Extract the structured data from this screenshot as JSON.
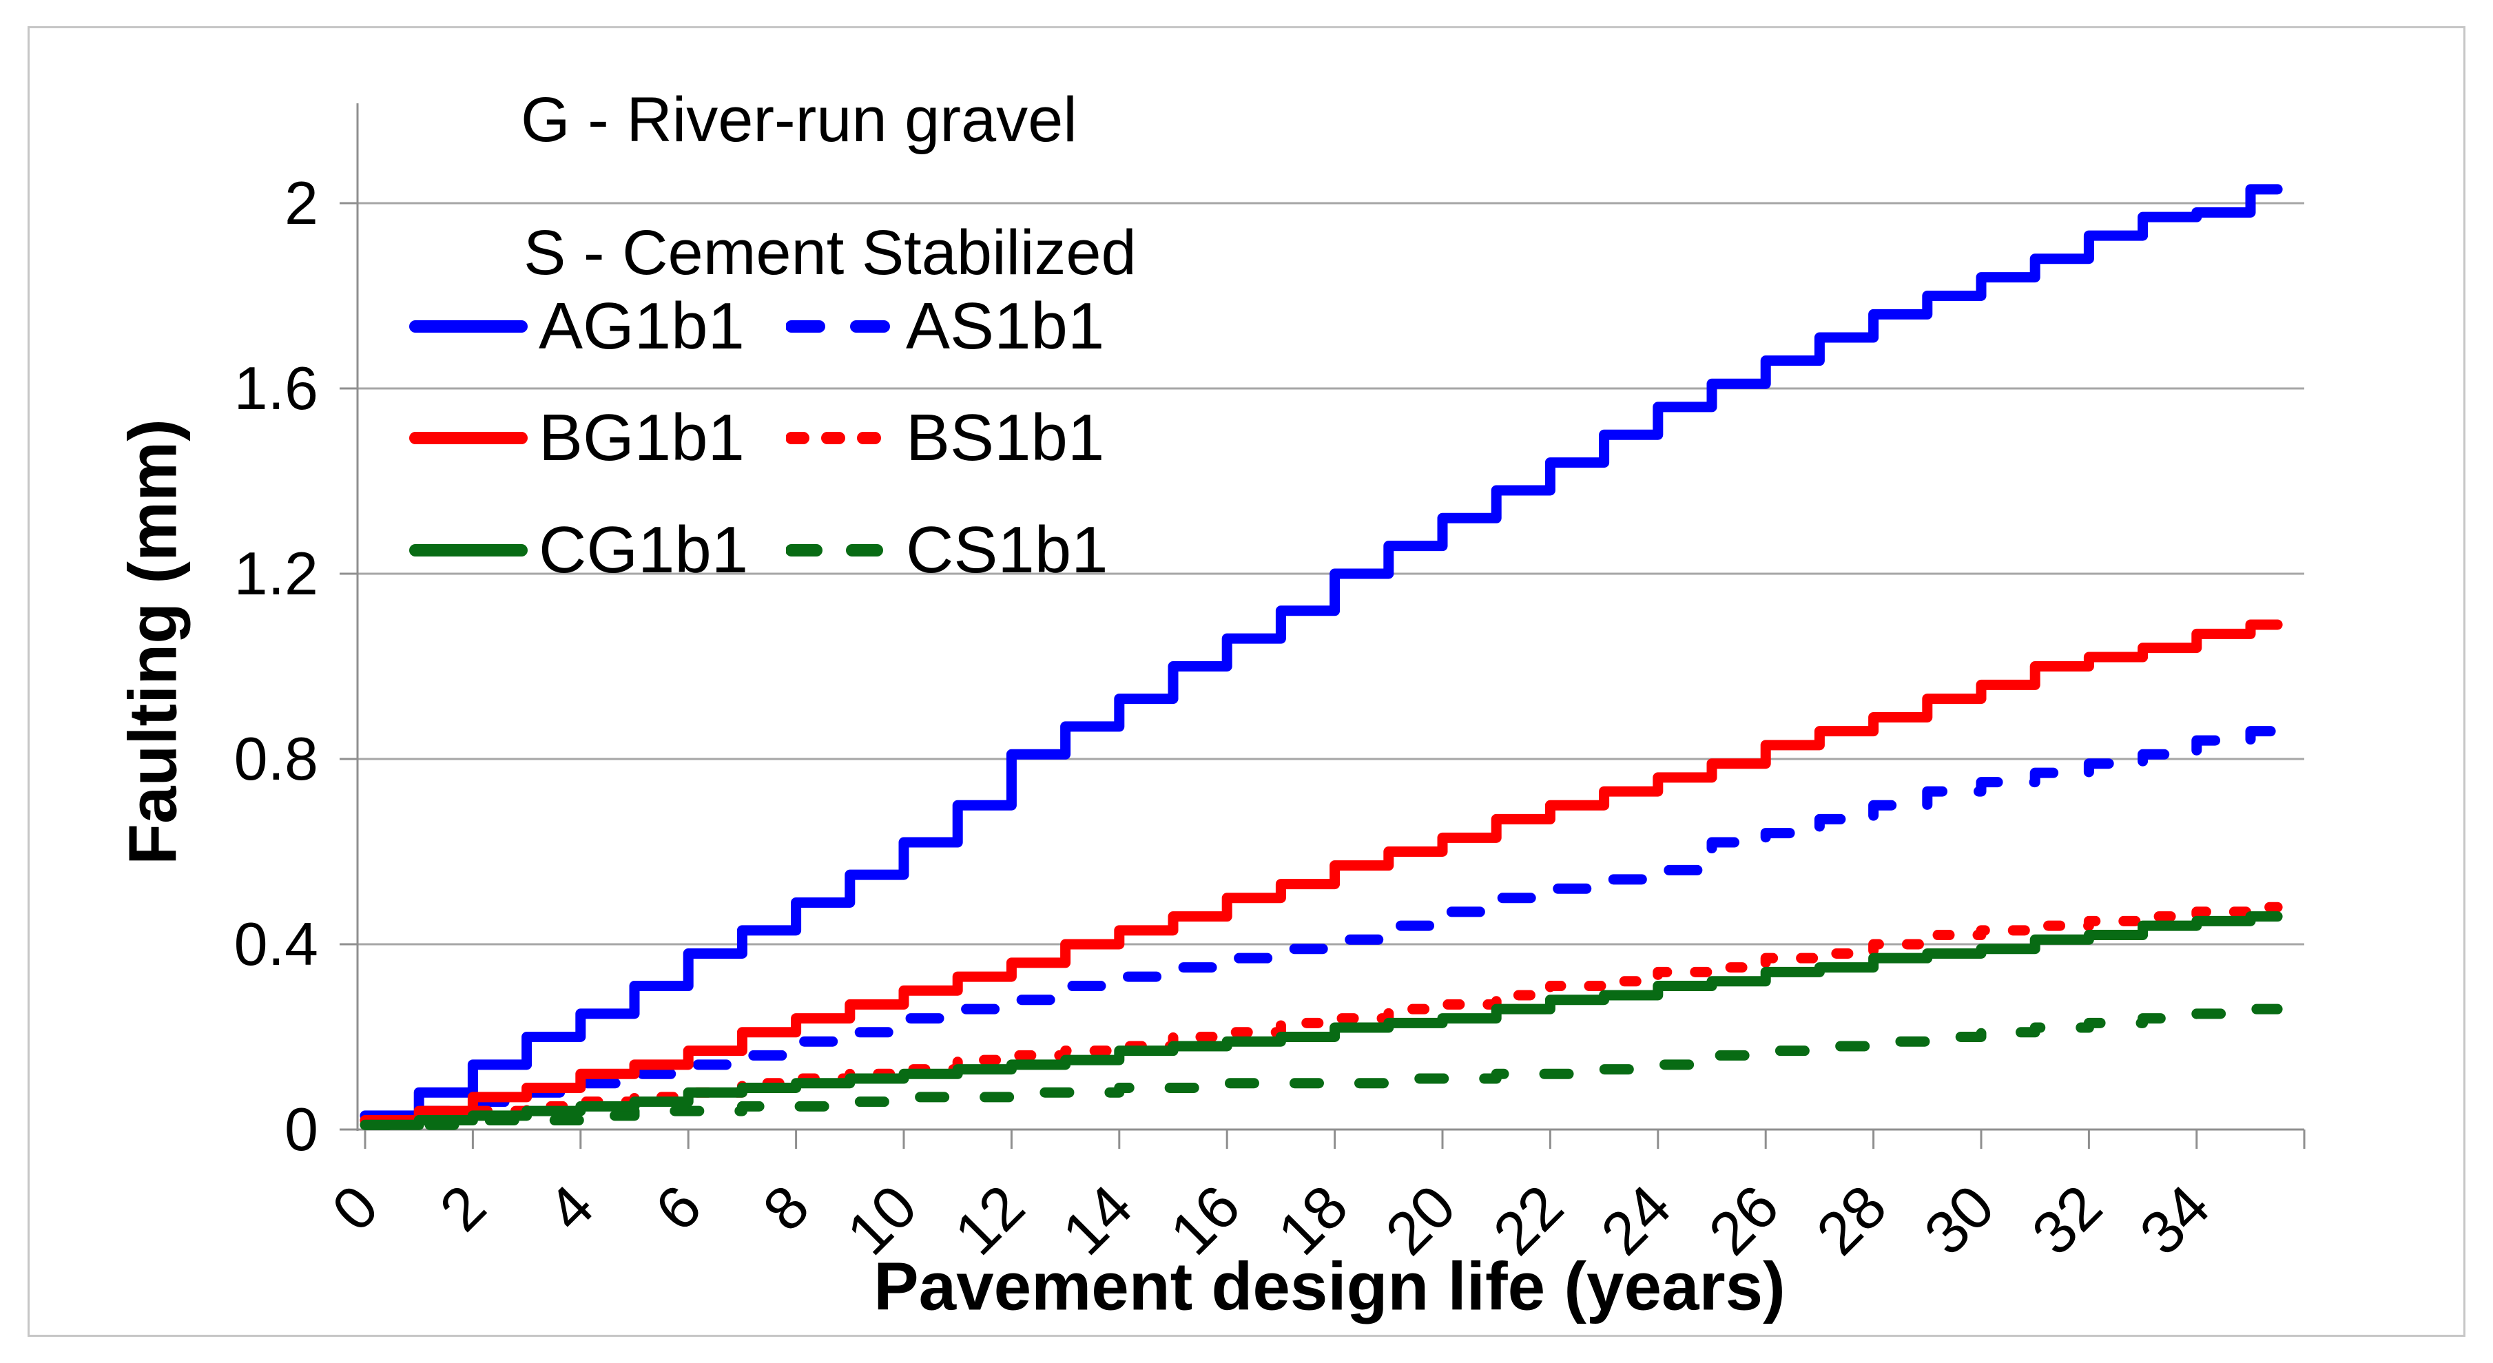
{
  "chart_data": {
    "type": "line",
    "subtype": "step",
    "title": "",
    "xlabel": "Pavement design life (years)",
    "ylabel": "Faulting (mm)",
    "xlim": [
      0,
      36
    ],
    "ylim": [
      0,
      2.2
    ],
    "grid": "horizontal",
    "legend_position": "top-left-inside",
    "legend_notes": [
      "G - River-run gravel",
      "S - Cement Stabilized"
    ],
    "xtick_values": [
      0,
      2,
      4,
      6,
      8,
      10,
      12,
      14,
      16,
      18,
      20,
      22,
      24,
      26,
      28,
      30,
      32,
      34
    ],
    "xtick_labels": [
      "0",
      "2",
      "4",
      "6",
      "8",
      "10",
      "12",
      "14",
      "16",
      "18",
      "20",
      "22",
      "24",
      "26",
      "28",
      "30",
      "32",
      "34"
    ],
    "ytick_values": [
      0,
      0.4,
      0.8,
      1.2,
      1.6,
      2
    ],
    "ytick_labels": [
      "0",
      "0.4",
      "0.8",
      "1.2",
      "1.6",
      "2"
    ],
    "x_years": [
      0,
      1,
      2,
      3,
      4,
      5,
      6,
      7,
      8,
      9,
      10,
      11,
      12,
      13,
      14,
      15,
      16,
      17,
      18,
      19,
      20,
      21,
      22,
      23,
      24,
      25,
      26,
      27,
      28,
      29,
      30,
      31,
      32,
      33,
      34,
      35
    ],
    "x_end": 35.5,
    "series": [
      {
        "name": "AG1b1",
        "color": "#0000fe",
        "line_style": "solid",
        "values": [
          0.03,
          0.08,
          0.14,
          0.2,
          0.25,
          0.31,
          0.38,
          0.43,
          0.49,
          0.55,
          0.62,
          0.7,
          0.81,
          0.87,
          0.93,
          1.0,
          1.06,
          1.12,
          1.2,
          1.26,
          1.32,
          1.38,
          1.44,
          1.5,
          1.56,
          1.61,
          1.66,
          1.71,
          1.76,
          1.8,
          1.84,
          1.88,
          1.93,
          1.97,
          1.98,
          2.03
        ]
      },
      {
        "name": "AS1b1",
        "color": "#0000fe",
        "line_style": "long-dash",
        "values": [
          0.02,
          0.04,
          0.06,
          0.08,
          0.1,
          0.12,
          0.14,
          0.16,
          0.19,
          0.21,
          0.24,
          0.26,
          0.28,
          0.31,
          0.33,
          0.35,
          0.37,
          0.39,
          0.41,
          0.44,
          0.47,
          0.5,
          0.52,
          0.54,
          0.56,
          0.62,
          0.64,
          0.67,
          0.7,
          0.73,
          0.75,
          0.77,
          0.79,
          0.81,
          0.84,
          0.86
        ]
      },
      {
        "name": "BG1b1",
        "color": "#fe0000",
        "line_style": "solid",
        "values": [
          0.02,
          0.04,
          0.07,
          0.09,
          0.12,
          0.14,
          0.17,
          0.21,
          0.24,
          0.27,
          0.3,
          0.33,
          0.36,
          0.4,
          0.43,
          0.46,
          0.5,
          0.53,
          0.57,
          0.6,
          0.63,
          0.67,
          0.7,
          0.73,
          0.76,
          0.79,
          0.83,
          0.86,
          0.89,
          0.93,
          0.96,
          1.0,
          1.02,
          1.04,
          1.07,
          1.09
        ]
      },
      {
        "name": "BS1b1",
        "color": "#fe0000",
        "line_style": "short-dash",
        "values": [
          0.02,
          0.03,
          0.04,
          0.05,
          0.06,
          0.07,
          0.08,
          0.1,
          0.11,
          0.12,
          0.13,
          0.15,
          0.16,
          0.17,
          0.18,
          0.2,
          0.21,
          0.23,
          0.24,
          0.26,
          0.27,
          0.29,
          0.31,
          0.32,
          0.34,
          0.35,
          0.37,
          0.38,
          0.4,
          0.42,
          0.43,
          0.44,
          0.45,
          0.46,
          0.47,
          0.48
        ]
      },
      {
        "name": "CG1b1",
        "color": "#086b14",
        "line_style": "solid",
        "values": [
          0.01,
          0.02,
          0.03,
          0.04,
          0.05,
          0.06,
          0.08,
          0.09,
          0.1,
          0.11,
          0.12,
          0.13,
          0.14,
          0.15,
          0.17,
          0.18,
          0.19,
          0.2,
          0.22,
          0.23,
          0.24,
          0.26,
          0.28,
          0.29,
          0.31,
          0.32,
          0.34,
          0.35,
          0.37,
          0.38,
          0.39,
          0.41,
          0.42,
          0.44,
          0.45,
          0.46
        ]
      },
      {
        "name": "CS1b1",
        "color": "#086b14",
        "line_style": "long-dash",
        "values": [
          0.01,
          0.01,
          0.02,
          0.02,
          0.03,
          0.04,
          0.04,
          0.05,
          0.05,
          0.06,
          0.07,
          0.07,
          0.08,
          0.08,
          0.09,
          0.09,
          0.1,
          0.1,
          0.1,
          0.11,
          0.11,
          0.12,
          0.12,
          0.13,
          0.14,
          0.16,
          0.17,
          0.18,
          0.19,
          0.2,
          0.21,
          0.22,
          0.23,
          0.24,
          0.25,
          0.26
        ]
      }
    ],
    "colors": {
      "axis": "#8f8f8f",
      "grid": "#a6a6a6",
      "text": "#000000",
      "figure_border": "#c6c6c6",
      "background": "#ffffff"
    }
  }
}
